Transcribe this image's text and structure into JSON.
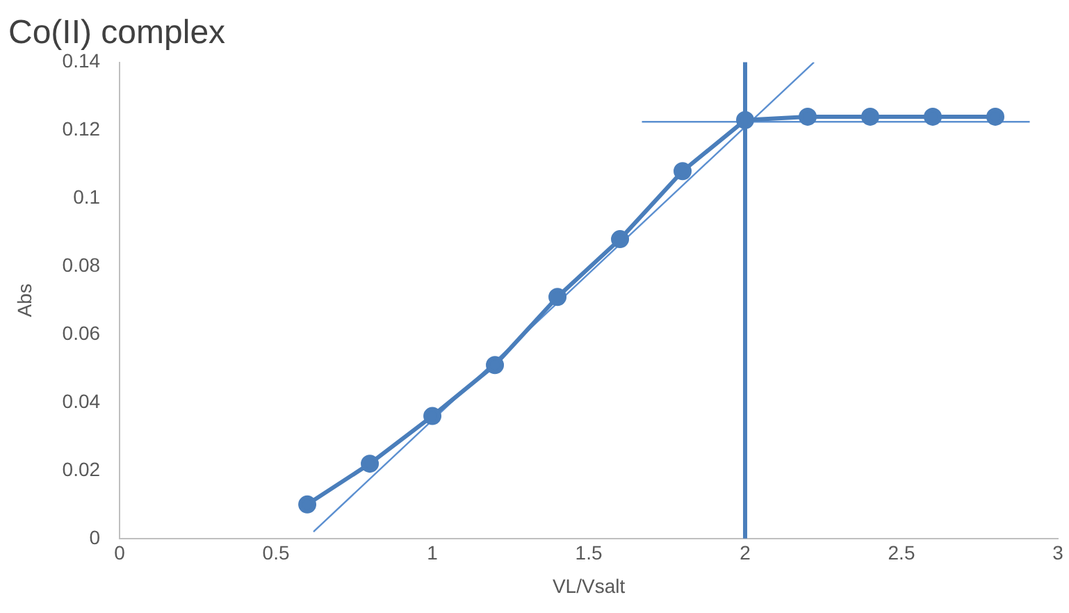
{
  "chart_data": {
    "type": "line",
    "title": "Co(II) complex",
    "xlabel": "VL/Vsalt",
    "ylabel": "Abs",
    "x": [
      0.6,
      0.8,
      1.0,
      1.2,
      1.4,
      1.6,
      1.8,
      2.0,
      2.2,
      2.4,
      2.6,
      2.8
    ],
    "series": [
      {
        "color": "#4a7ebb",
        "values": [
          0.01,
          0.022,
          0.036,
          0.051,
          0.071,
          0.088,
          0.108,
          0.123,
          0.124,
          0.124,
          0.124,
          0.124
        ],
        "marker": "circle"
      },
      {
        "type": "line",
        "color": "#5b8fd0",
        "x": [
          0.62,
          2.22
        ],
        "values": [
          0.002,
          0.14
        ],
        "marker": "none"
      },
      {
        "type": "line",
        "color": "#5b8fd0",
        "x": [
          1.67,
          2.91
        ],
        "values": [
          0.1225,
          0.1225
        ],
        "marker": "none"
      }
    ],
    "ref_lines": [
      {
        "axis": "x",
        "value": 2,
        "color": "#4a7ebb"
      }
    ],
    "xlim": [
      0,
      3
    ],
    "xticks": [
      0,
      0.5,
      1,
      1.5,
      2,
      2.5,
      3
    ],
    "ylim": [
      0,
      0.14
    ],
    "yticks": [
      0,
      0.02,
      0.04,
      0.06,
      0.08,
      0.1,
      0.12,
      0.14
    ],
    "grid": false,
    "legend": false
  }
}
